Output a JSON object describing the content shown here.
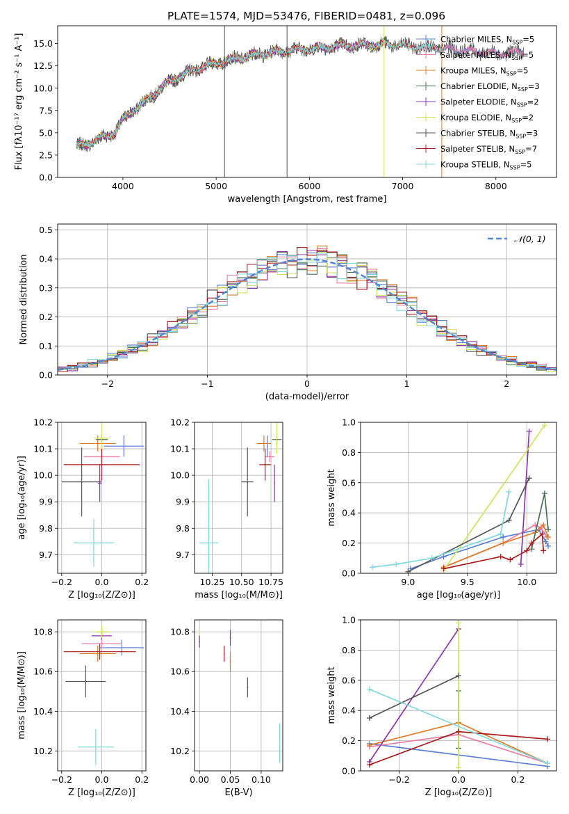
{
  "figure_title": "PLATE=1574, MJD=53476, FIBERID=0481, z=0.096",
  "colors": {
    "Chabrier MILES": "#5b7fd6",
    "Salpeter MILES": "#e87ea1",
    "Kroupa MILES": "#e07b25",
    "Chabrier ELODIE": "#4a6e52",
    "Salpeter ELODIE": "#8e34ad",
    "Kroupa ELODIE": "#cfe35a",
    "Chabrier STELIB": "#555555",
    "Salpeter STELIB": "#a81c1c",
    "Kroupa STELIB": "#80d8dc",
    "normal": "#4f86d6",
    "grid": "#b0b0b0"
  },
  "spectrum_legend": [
    {
      "name": "Chabrier MILES",
      "label": "Chabrier MILES, N",
      "sub": "SSP",
      "suffix": "=5"
    },
    {
      "name": "Salpeter MILES",
      "label": "Salpeter MILES, N",
      "sub": "SSP",
      "suffix": "=5"
    },
    {
      "name": "Kroupa MILES",
      "label": "Kroupa MILES, N",
      "sub": "SSP",
      "suffix": "=5"
    },
    {
      "name": "Chabrier ELODIE",
      "label": "Chabrier ELODIE, N",
      "sub": "SSP",
      "suffix": "=3"
    },
    {
      "name": "Salpeter ELODIE",
      "label": "Salpeter ELODIE, N",
      "sub": "SSP",
      "suffix": "=2"
    },
    {
      "name": "Kroupa ELODIE",
      "label": "Kroupa ELODIE, N",
      "sub": "SSP",
      "suffix": "=2"
    },
    {
      "name": "Chabrier STELIB",
      "label": "Chabrier STELIB, N",
      "sub": "SSP",
      "suffix": "=3"
    },
    {
      "name": "Salpeter STELIB",
      "label": "Salpeter STELIB, N",
      "sub": "SSP",
      "suffix": "=7"
    },
    {
      "name": "Kroupa STELIB",
      "label": "Kroupa STELIB, N",
      "sub": "SSP",
      "suffix": "=5"
    }
  ],
  "chart_data": [
    {
      "id": "spectrum",
      "type": "line",
      "xlabel": "wavelength [Angstrom, rest frame]",
      "ylabel": "Flux [fλ10⁻¹⁷ erg cm⁻² s⁻¹ A⁻¹]",
      "xlim": [
        3300,
        8650
      ],
      "ylim": [
        0,
        17
      ],
      "xticks": [
        4000,
        5000,
        6000,
        7000,
        8000
      ],
      "yticks": [
        0.0,
        2.5,
        5.0,
        7.5,
        10.0,
        12.5,
        15.0
      ],
      "ytick_labels": [
        "0.0",
        "2.5",
        "5.0",
        "7.5",
        "10.0",
        "12.5",
        "15.0"
      ],
      "legend_position": "right",
      "continuum": {
        "x": [
          3450,
          3600,
          3700,
          3800,
          3900,
          4000,
          4100,
          4200,
          4300,
          4400,
          4600,
          4800,
          5000,
          5200,
          5400,
          5600,
          5800,
          6000,
          6200,
          6400,
          6600,
          6800,
          7000,
          7200,
          7400,
          7600,
          7800,
          8000,
          8200,
          8300
        ],
        "y": [
          3.4,
          3.6,
          4.2,
          4.5,
          5.0,
          6.3,
          7.5,
          8.2,
          9.0,
          10.0,
          11.3,
          12.2,
          12.8,
          13.3,
          13.7,
          14.0,
          14.3,
          14.4,
          14.6,
          14.8,
          14.8,
          14.9,
          14.8,
          14.6,
          14.5,
          14.3,
          14.1,
          13.9,
          14.0,
          14.1
        ]
      },
      "series_ranges": [
        {
          "name": "Chabrier MILES",
          "x": [
            3500,
            8300
          ]
        },
        {
          "name": "Salpeter MILES",
          "x": [
            3500,
            8300
          ]
        },
        {
          "name": "Kroupa MILES",
          "x": [
            3500,
            7420
          ]
        },
        {
          "name": "Chabrier ELODIE",
          "x": [
            3500,
            6800
          ]
        },
        {
          "name": "Salpeter ELODIE",
          "x": [
            3500,
            6800
          ]
        },
        {
          "name": "Kroupa ELODIE",
          "x": [
            3500,
            6800
          ]
        },
        {
          "name": "Chabrier STELIB",
          "x": [
            3500,
            8300
          ]
        },
        {
          "name": "Salpeter STELIB",
          "x": [
            3500,
            7420
          ]
        },
        {
          "name": "Kroupa STELIB",
          "x": [
            3500,
            7420
          ]
        }
      ],
      "spikes": [
        {
          "x": 5090,
          "color": "#555555"
        },
        {
          "x": 5760,
          "color": "#555555"
        },
        {
          "x": 6800,
          "color": "#cfe35a"
        },
        {
          "x": 7420,
          "color": "#e07b25"
        }
      ]
    },
    {
      "id": "residuals",
      "type": "histogram",
      "xlabel": "(data-model)/error",
      "ylabel": "Normed distribution",
      "xlim": [
        -2.5,
        2.5
      ],
      "ylim": [
        0,
        0.52
      ],
      "xticks": [
        -2,
        -1,
        0,
        1,
        2
      ],
      "xtick_labels": [
        "−2",
        "−1",
        "0",
        "1",
        "2"
      ],
      "yticks": [
        0.0,
        0.1,
        0.2,
        0.3,
        0.4,
        0.5
      ],
      "ytick_labels": [
        "0.0",
        "0.1",
        "0.2",
        "0.3",
        "0.4",
        "0.5"
      ],
      "bin_width": 0.1,
      "legend": "𝒩(0, 1)",
      "legend_position": "top-right"
    },
    {
      "id": "age_vs_Z",
      "type": "scatter",
      "xlabel": "Z [log₁₀(Z/Z⊙)]",
      "ylabel": "age  [log₁₀(age/yr)]",
      "xlim": [
        -0.22,
        0.22
      ],
      "ylim": [
        9.63,
        10.2
      ],
      "xticks": [
        -0.2,
        0.0,
        0.2
      ],
      "xtick_labels": [
        "−0.2",
        "0.0",
        "0.2"
      ],
      "yticks": [
        9.7,
        9.8,
        9.9,
        10.0,
        10.1,
        10.2
      ],
      "ytick_labels": [
        "9.7",
        "9.8",
        "9.9",
        "10.0",
        "10.1",
        "10.2"
      ],
      "points": [
        {
          "s": "Chabrier MILES",
          "x": 0.11,
          "y": 10.11,
          "dx": 0.1,
          "dy": 0.04
        },
        {
          "s": "Salpeter MILES",
          "x": 0.0,
          "y": 10.07,
          "dx": 0.09,
          "dy": 0.02
        },
        {
          "s": "Kroupa MILES",
          "x": -0.02,
          "y": 10.12,
          "dx": 0.09,
          "dy": 0.03
        },
        {
          "s": "Chabrier ELODIE",
          "x": 0.0,
          "y": 10.135,
          "dx": 0.03,
          "dy": 0.01
        },
        {
          "s": "Salpeter ELODIE",
          "x": -0.01,
          "y": 9.97,
          "dx": 0.01,
          "dy": 0.07
        },
        {
          "s": "Kroupa ELODIE",
          "x": 0.0,
          "y": 10.14,
          "dx": 0.04,
          "dy": 0.06
        },
        {
          "s": "Chabrier STELIB",
          "x": -0.1,
          "y": 9.975,
          "dx": 0.1,
          "dy": 0.13
        },
        {
          "s": "Salpeter STELIB",
          "x": 0.0,
          "y": 10.04,
          "dx": 0.19,
          "dy": 0.06
        },
        {
          "s": "Kroupa STELIB",
          "x": -0.04,
          "y": 9.745,
          "dx": 0.1,
          "dy": 0.09
        }
      ]
    },
    {
      "id": "age_vs_mass",
      "type": "scatter",
      "xlabel": "mass [log₁₀(M/M⊙)]",
      "ylabel": "",
      "xlim": [
        10.1,
        10.85
      ],
      "ylim": [
        9.63,
        10.2
      ],
      "xticks": [
        10.25,
        10.5,
        10.75
      ],
      "xtick_labels": [
        "10.25",
        "10.50",
        "10.75"
      ],
      "yticks": [
        9.7,
        9.8,
        9.9,
        10.0,
        10.1,
        10.2
      ],
      "ytick_labels": [
        "9.7",
        "9.8",
        "9.9",
        "10.0",
        "10.1",
        "10.2"
      ],
      "points": [
        {
          "s": "Chabrier MILES",
          "x": 10.72,
          "y": 10.11,
          "dx": 0.0,
          "dy": 0.04
        },
        {
          "s": "Salpeter MILES",
          "x": 10.74,
          "y": 10.07,
          "dx": 0.04,
          "dy": 0.02
        },
        {
          "s": "Kroupa MILES",
          "x": 10.69,
          "y": 10.12,
          "dx": 0.06,
          "dy": 0.03
        },
        {
          "s": "Chabrier ELODIE",
          "x": 10.8,
          "y": 10.135,
          "dx": 0.04,
          "dy": 0.01
        },
        {
          "s": "Salpeter ELODIE",
          "x": 10.78,
          "y": 9.97,
          "dx": 0.0,
          "dy": 0.07
        },
        {
          "s": "Kroupa ELODIE",
          "x": 10.8,
          "y": 10.14,
          "dx": 0.0,
          "dy": 0.06
        },
        {
          "s": "Chabrier STELIB",
          "x": 10.55,
          "y": 9.975,
          "dx": 0.05,
          "dy": 0.13
        },
        {
          "s": "Salpeter STELIB",
          "x": 10.7,
          "y": 10.04,
          "dx": 0.05,
          "dy": 0.06
        },
        {
          "s": "Kroupa STELIB",
          "x": 10.22,
          "y": 9.745,
          "dx": 0.08,
          "dy": 0.24
        }
      ]
    },
    {
      "id": "weight_vs_age",
      "type": "line",
      "xlabel": "age  [log₁₀(age/yr)]",
      "ylabel": "mass weight",
      "xlim": [
        8.6,
        10.25
      ],
      "ylim": [
        0,
        1.0
      ],
      "xticks": [
        9.0,
        9.5,
        10.0
      ],
      "xtick_labels": [
        "9.0",
        "9.5",
        "10.0"
      ],
      "yticks": [
        0.0,
        0.2,
        0.4,
        0.6,
        0.8,
        1.0
      ],
      "ytick_labels": [
        "0.0",
        "0.2",
        "0.4",
        "0.6",
        "0.8",
        "1.0"
      ],
      "series": [
        {
          "name": "Chabrier MILES",
          "x": [
            9.02,
            9.3,
            9.8,
            10.1,
            10.16,
            10.18
          ],
          "y": [
            0.03,
            0.11,
            0.24,
            0.29,
            0.21,
            0.18
          ]
        },
        {
          "name": "Salpeter MILES",
          "x": [
            9.3,
            9.8,
            10.07,
            10.12,
            10.17
          ],
          "y": [
            0.04,
            0.2,
            0.32,
            0.3,
            0.24
          ]
        },
        {
          "name": "Kroupa MILES",
          "x": [
            9.3,
            9.8,
            10.07,
            10.14,
            10.18
          ],
          "y": [
            0.04,
            0.2,
            0.27,
            0.32,
            0.24
          ]
        },
        {
          "name": "Chabrier ELODIE",
          "x": [
            10.04,
            10.15,
            10.18
          ],
          "y": [
            0.16,
            0.53,
            0.29
          ]
        },
        {
          "name": "Salpeter ELODIE",
          "x": [
            9.95,
            10.02
          ],
          "y": [
            0.06,
            0.94
          ]
        },
        {
          "name": "Kroupa ELODIE",
          "x": [
            9.3,
            10.15
          ],
          "y": [
            0.02,
            0.98
          ]
        },
        {
          "name": "Chabrier STELIB",
          "x": [
            9.0,
            9.85,
            10.02
          ],
          "y": [
            0.01,
            0.35,
            0.63
          ]
        },
        {
          "name": "Salpeter STELIB",
          "x": [
            9.3,
            9.78,
            9.86,
            10.0,
            10.04,
            10.13,
            10.14
          ],
          "y": [
            0.03,
            0.11,
            0.09,
            0.15,
            0.2,
            0.26,
            0.15
          ]
        },
        {
          "name": "Kroupa STELIB",
          "x": [
            8.7,
            8.9,
            9.2,
            9.78,
            9.85
          ],
          "y": [
            0.04,
            0.06,
            0.1,
            0.26,
            0.54
          ]
        }
      ]
    },
    {
      "id": "mass_vs_Z",
      "type": "scatter",
      "xlabel": "Z [log₁₀(Z/Z⊙)]",
      "ylabel": "mass [log₁₀(M/M⊙)]",
      "xlim": [
        -0.22,
        0.22
      ],
      "ylim": [
        10.1,
        10.86
      ],
      "xticks": [
        -0.2,
        0.0,
        0.2
      ],
      "xtick_labels": [
        "−0.2",
        "0.0",
        "0.2"
      ],
      "yticks": [
        10.2,
        10.4,
        10.6,
        10.8
      ],
      "ytick_labels": [
        "10.2",
        "10.4",
        "10.6",
        "10.8"
      ],
      "points": [
        {
          "s": "Chabrier MILES",
          "x": 0.1,
          "y": 10.72,
          "dx": 0.11,
          "dy": 0.04
        },
        {
          "s": "Salpeter MILES",
          "x": 0.0,
          "y": 10.74,
          "dx": 0.1,
          "dy": 0.02
        },
        {
          "s": "Kroupa MILES",
          "x": -0.02,
          "y": 10.69,
          "dx": 0.09,
          "dy": 0.04
        },
        {
          "s": "Chabrier ELODIE",
          "x": 0.0,
          "y": 10.8,
          "dx": 0.03,
          "dy": 0.01
        },
        {
          "s": "Salpeter ELODIE",
          "x": 0.0,
          "y": 10.78,
          "dx": 0.05,
          "dy": 0.02
        },
        {
          "s": "Kroupa ELODIE",
          "x": 0.0,
          "y": 10.8,
          "dx": 0.04,
          "dy": 0.03
        },
        {
          "s": "Chabrier STELIB",
          "x": -0.08,
          "y": 10.55,
          "dx": 0.1,
          "dy": 0.08
        },
        {
          "s": "Salpeter STELIB",
          "x": -0.01,
          "y": 10.7,
          "dx": 0.18,
          "dy": 0.04
        },
        {
          "s": "Kroupa STELIB",
          "x": -0.03,
          "y": 10.22,
          "dx": 0.09,
          "dy": 0.09
        }
      ]
    },
    {
      "id": "mass_vs_ebv",
      "type": "scatter",
      "xlabel": "E(B-V)",
      "ylabel": "",
      "xlim": [
        -0.008,
        0.135
      ],
      "ylim": [
        10.1,
        10.86
      ],
      "xticks": [
        0.0,
        0.05,
        0.1
      ],
      "xtick_labels": [
        "0.00",
        "0.05",
        "0.10"
      ],
      "yticks": [
        10.2,
        10.4,
        10.6,
        10.8
      ],
      "ytick_labels": [
        "10.2",
        "10.4",
        "10.6",
        "10.8"
      ],
      "points": [
        {
          "s": "Kroupa ELODIE",
          "x": 0.0,
          "y": 10.78,
          "dx": 0.0,
          "dy": 0.03
        },
        {
          "s": "Salpeter ELODIE",
          "x": 0.0,
          "y": 10.75,
          "dx": 0.0,
          "dy": 0.03
        },
        {
          "s": "Salpeter ELODIE",
          "x": 0.05,
          "y": 10.77,
          "dx": 0.0,
          "dy": 0.04
        },
        {
          "s": "Salpeter STELIB",
          "x": 0.04,
          "y": 10.69,
          "dx": 0.0,
          "dy": 0.04
        },
        {
          "s": "Kroupa MILES",
          "x": 0.05,
          "y": 10.65,
          "dx": 0.0,
          "dy": 0.05
        },
        {
          "s": "Chabrier STELIB",
          "x": 0.078,
          "y": 10.52,
          "dx": 0.0,
          "dy": 0.05
        },
        {
          "s": "Kroupa STELIB",
          "x": 0.13,
          "y": 10.24,
          "dx": 0.0,
          "dy": 0.1
        }
      ]
    },
    {
      "id": "weight_vs_Z",
      "type": "line",
      "xlabel": "Z [log₁₀(Z/Z⊙)]",
      "ylabel": "mass weight",
      "xlim": [
        -0.33,
        0.33
      ],
      "ylim": [
        0,
        1.0
      ],
      "xticks": [
        -0.2,
        0.0,
        0.2
      ],
      "xtick_labels": [
        "−0.2",
        "0.0",
        "0.2"
      ],
      "yticks": [
        0.0,
        0.2,
        0.4,
        0.6,
        0.8,
        1.0
      ],
      "ytick_labels": [
        "0.0",
        "0.2",
        "0.4",
        "0.6",
        "0.8",
        "1.0"
      ],
      "series": [
        {
          "name": "Chabrier MILES",
          "x": [
            -0.3,
            0.3
          ],
          "y": [
            0.18,
            0.03
          ]
        },
        {
          "name": "Salpeter MILES",
          "x": [
            -0.3,
            0.0,
            0.3
          ],
          "y": [
            0.16,
            0.24,
            0.05
          ]
        },
        {
          "name": "Kroupa MILES",
          "x": [
            -0.3,
            0.0,
            0.3
          ],
          "y": [
            0.17,
            0.32,
            0.05
          ]
        },
        {
          "name": "Chabrier ELODIE",
          "x": [
            0.0,
            0.0
          ],
          "y": [
            0.15,
            0.53
          ]
        },
        {
          "name": "Salpeter ELODIE",
          "x": [
            -0.3,
            0.0
          ],
          "y": [
            0.06,
            0.94
          ]
        },
        {
          "name": "Kroupa ELODIE",
          "x": [
            0.0,
            0.0
          ],
          "y": [
            0.02,
            0.98
          ]
        },
        {
          "name": "Chabrier STELIB",
          "x": [
            -0.3,
            0.0
          ],
          "y": [
            0.35,
            0.63
          ]
        },
        {
          "name": "Salpeter STELIB",
          "x": [
            -0.3,
            0.0,
            0.3
          ],
          "y": [
            0.04,
            0.26,
            0.21
          ]
        },
        {
          "name": "Kroupa STELIB",
          "x": [
            -0.3,
            0.3
          ],
          "y": [
            0.54,
            0.05
          ]
        }
      ]
    }
  ]
}
